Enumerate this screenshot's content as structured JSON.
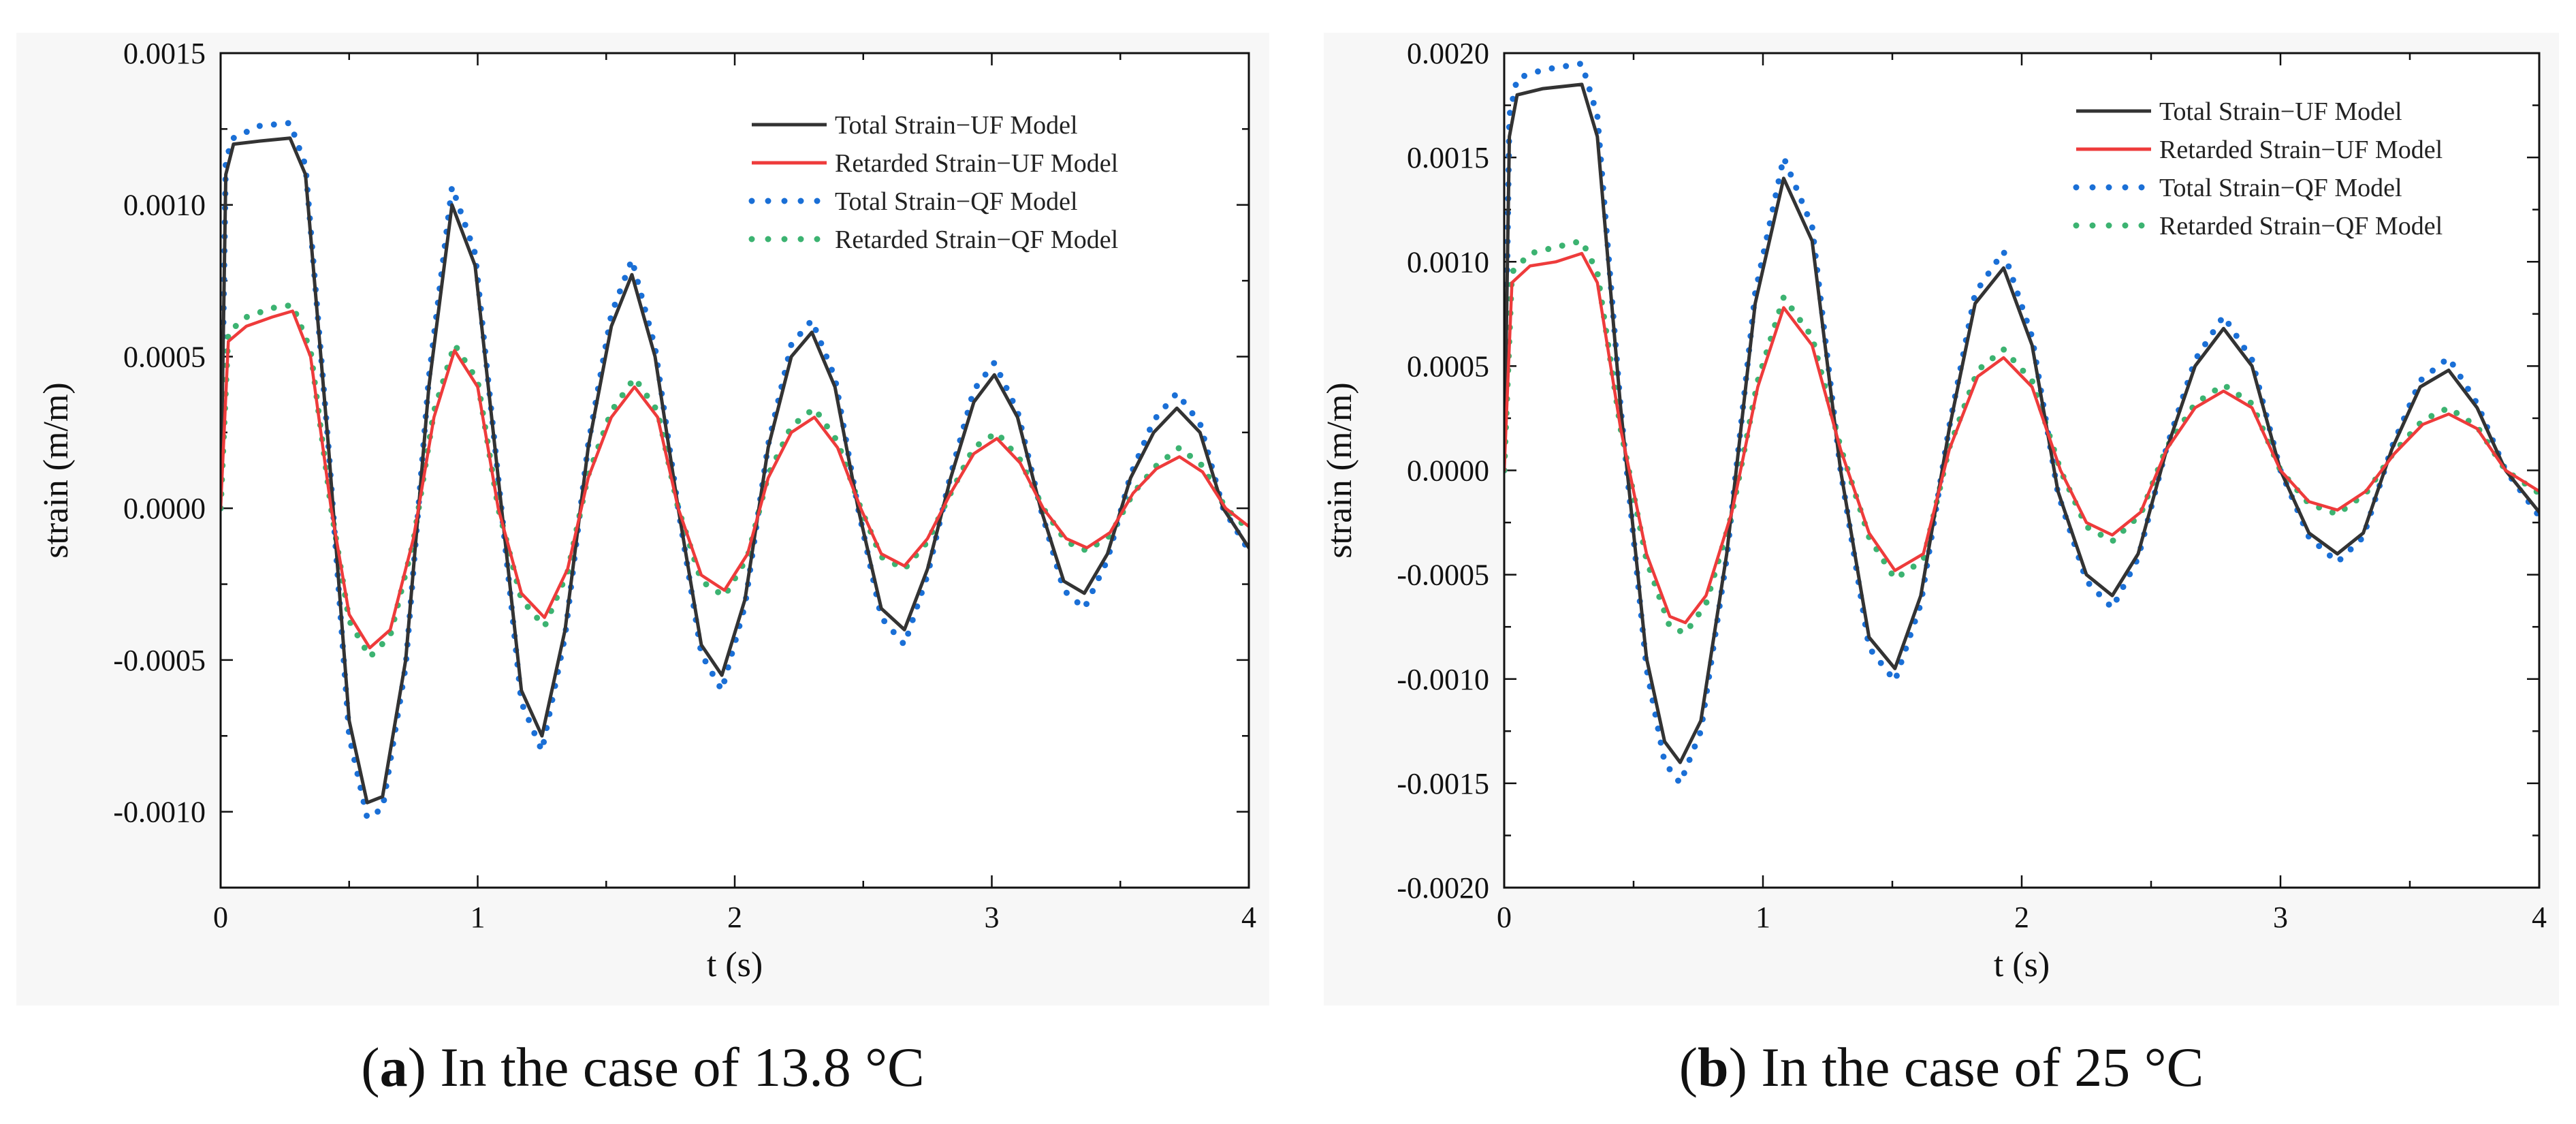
{
  "chart_data": [
    {
      "type": "line",
      "panel_id": "a",
      "caption_letter": "a",
      "caption_text": ") In the case of 13.8 °C",
      "xlabel": "t (s)",
      "ylabel": "strain (m/m)",
      "xlim": [
        0,
        4
      ],
      "ylim": [
        -0.00125,
        0.0015
      ],
      "xticks": [
        0,
        1,
        2,
        3,
        4
      ],
      "xtick_labels": [
        "0",
        "1",
        "2",
        "3",
        "4"
      ],
      "yticks": [
        -0.001,
        -0.0005,
        0.0,
        0.0005,
        0.001,
        0.0015
      ],
      "ytick_labels": [
        "-0.0010",
        "-0.0005",
        "0.0000",
        "0.0005",
        "0.0010",
        "0.0015"
      ],
      "legend_position": "top-right",
      "series": [
        {
          "name": "Total Strain−UF Model",
          "color": "#333333",
          "style": "solid",
          "x": [
            0,
            0.02,
            0.05,
            0.15,
            0.27,
            0.33,
            0.42,
            0.5,
            0.57,
            0.63,
            0.72,
            0.81,
            0.9,
            0.99,
            1.08,
            1.17,
            1.25,
            1.34,
            1.43,
            1.52,
            1.6,
            1.69,
            1.78,
            1.87,
            1.95,
            2.04,
            2.13,
            2.22,
            2.3,
            2.39,
            2.48,
            2.57,
            2.66,
            2.75,
            2.84,
            2.93,
            3.01,
            3.1,
            3.19,
            3.28,
            3.36,
            3.45,
            3.54,
            3.63,
            3.72,
            3.81,
            3.9,
            4.0
          ],
          "y": [
            0.0,
            0.0011,
            0.0012,
            0.00121,
            0.00122,
            0.0011,
            0.0002,
            -0.0007,
            -0.00097,
            -0.00095,
            -0.0005,
            0.0004,
            0.001,
            0.0008,
            0.0001,
            -0.0006,
            -0.00075,
            -0.0004,
            0.0002,
            0.0006,
            0.00077,
            0.0005,
            0.0,
            -0.00045,
            -0.00055,
            -0.0003,
            0.0002,
            0.0005,
            0.00058,
            0.0004,
            0.0,
            -0.00033,
            -0.0004,
            -0.0002,
            0.0001,
            0.00035,
            0.00044,
            0.0003,
            0.0,
            -0.00024,
            -0.00028,
            -0.00015,
            0.0001,
            0.00025,
            0.00033,
            0.00025,
            0.0,
            -0.00013
          ]
        },
        {
          "name": "Retarded Strain−UF Model",
          "color": "#ee3b3b",
          "style": "solid",
          "x": [
            0,
            0.03,
            0.1,
            0.2,
            0.28,
            0.35,
            0.43,
            0.5,
            0.58,
            0.66,
            0.75,
            0.83,
            0.91,
            1.0,
            1.08,
            1.17,
            1.26,
            1.35,
            1.43,
            1.52,
            1.61,
            1.7,
            1.78,
            1.87,
            1.96,
            2.05,
            2.13,
            2.22,
            2.31,
            2.4,
            2.49,
            2.57,
            2.66,
            2.75,
            2.84,
            2.93,
            3.02,
            3.11,
            3.2,
            3.29,
            3.37,
            3.46,
            3.55,
            3.64,
            3.73,
            3.82,
            3.91,
            4.0
          ],
          "y": [
            0.0,
            0.00055,
            0.0006,
            0.00063,
            0.00065,
            0.0005,
            0.0,
            -0.00035,
            -0.00046,
            -0.0004,
            -0.0001,
            0.0003,
            0.00052,
            0.0004,
            0.0,
            -0.00028,
            -0.00036,
            -0.0002,
            0.0001,
            0.0003,
            0.0004,
            0.0003,
            0.0,
            -0.00022,
            -0.00027,
            -0.00015,
            0.0001,
            0.00025,
            0.0003,
            0.0002,
            0.0,
            -0.00015,
            -0.00019,
            -0.0001,
            5e-05,
            0.00018,
            0.00023,
            0.00015,
            0.0,
            -0.0001,
            -0.00013,
            -8e-05,
            5e-05,
            0.00013,
            0.00017,
            0.00012,
            0.0,
            -6e-05
          ]
        },
        {
          "name": "Total Strain−QF Model",
          "color": "#1a6fd6",
          "style": "dotted",
          "x": [
            0,
            0.02,
            0.05,
            0.15,
            0.27,
            0.33,
            0.42,
            0.5,
            0.57,
            0.63,
            0.72,
            0.81,
            0.9,
            0.99,
            1.08,
            1.17,
            1.25,
            1.34,
            1.43,
            1.52,
            1.6,
            1.69,
            1.78,
            1.87,
            1.95,
            2.04,
            2.13,
            2.22,
            2.3,
            2.39,
            2.48,
            2.57,
            2.66,
            2.75,
            2.84,
            2.93,
            3.01,
            3.1,
            3.19,
            3.28,
            3.36,
            3.45,
            3.54,
            3.63,
            3.72,
            3.81,
            3.9,
            4.0
          ],
          "y": [
            0.0,
            0.00115,
            0.00122,
            0.00126,
            0.00127,
            0.00113,
            0.0002,
            -0.00075,
            -0.00102,
            -0.00099,
            -0.00052,
            0.00043,
            0.00106,
            0.00084,
            0.0001,
            -0.00064,
            -0.0008,
            -0.00042,
            0.00021,
            0.00064,
            0.00082,
            0.00053,
            0.0,
            -0.00048,
            -0.0006,
            -0.00032,
            0.00021,
            0.00054,
            0.00062,
            0.00043,
            0.0,
            -0.00036,
            -0.00045,
            -0.00022,
            0.00011,
            0.00039,
            0.00048,
            0.00032,
            0.0,
            -0.00027,
            -0.00033,
            -0.00017,
            0.00011,
            0.00029,
            0.00038,
            0.00028,
            0.0,
            -0.00014
          ]
        },
        {
          "name": "Retarded Strain−QF Model",
          "color": "#3cb371",
          "style": "dotted",
          "x": [
            0,
            0.03,
            0.1,
            0.2,
            0.28,
            0.35,
            0.43,
            0.5,
            0.58,
            0.66,
            0.75,
            0.83,
            0.91,
            1.0,
            1.08,
            1.17,
            1.26,
            1.35,
            1.43,
            1.52,
            1.61,
            1.7,
            1.78,
            1.87,
            1.96,
            2.05,
            2.13,
            2.22,
            2.31,
            2.4,
            2.49,
            2.57,
            2.66,
            2.75,
            2.84,
            2.93,
            3.02,
            3.11,
            3.2,
            3.29,
            3.37,
            3.46,
            3.55,
            3.64,
            3.73,
            3.82,
            3.91,
            4.0
          ],
          "y": [
            0.0,
            0.00058,
            0.00063,
            0.00066,
            0.00067,
            0.00052,
            0.0,
            -0.00037,
            -0.00049,
            -0.00042,
            -0.00011,
            0.00032,
            0.00054,
            0.00042,
            0.0,
            -0.0003,
            -0.00039,
            -0.00021,
            0.00011,
            0.00032,
            0.00043,
            0.00032,
            0.0,
            -0.00024,
            -0.00029,
            -0.00016,
            0.00011,
            0.00027,
            0.00033,
            0.00022,
            0.0,
            -0.00016,
            -0.0002,
            -0.00011,
            5e-05,
            0.0002,
            0.00025,
            0.00016,
            0.0,
            -0.00011,
            -0.00014,
            -9e-05,
            5e-05,
            0.00014,
            0.0002,
            0.00014,
            0.0,
            -7e-05
          ]
        }
      ]
    },
    {
      "type": "line",
      "panel_id": "b",
      "caption_letter": "b",
      "caption_text": ") In the case of 25 °C",
      "xlabel": "t (s)",
      "ylabel": "strain (m/m)",
      "xlim": [
        0,
        4
      ],
      "ylim": [
        -0.002,
        0.002
      ],
      "xticks": [
        0,
        1,
        2,
        3,
        4
      ],
      "xtick_labels": [
        "0",
        "1",
        "2",
        "3",
        "4"
      ],
      "yticks": [
        -0.002,
        -0.0015,
        -0.001,
        -0.0005,
        0.0,
        0.0005,
        0.001,
        0.0015,
        0.002
      ],
      "ytick_labels": [
        "-0.0020",
        "-0.0015",
        "-0.0010",
        "-0.0005",
        "0.0000",
        "0.0005",
        "0.0010",
        "0.0015",
        "0.0020"
      ],
      "legend_position": "top-right",
      "series": [
        {
          "name": "Total Strain−UF Model",
          "color": "#333333",
          "style": "solid",
          "x": [
            0,
            0.02,
            0.05,
            0.15,
            0.3,
            0.36,
            0.45,
            0.55,
            0.62,
            0.68,
            0.76,
            0.86,
            0.97,
            1.08,
            1.19,
            1.3,
            1.41,
            1.51,
            1.61,
            1.72,
            1.82,
            1.93,
            2.04,
            2.14,
            2.25,
            2.35,
            2.45,
            2.56,
            2.67,
            2.78,
            2.89,
            3.0,
            3.11,
            3.22,
            3.32,
            3.43,
            3.54,
            3.65,
            3.76,
            3.87,
            4.0
          ],
          "y": [
            0.0,
            0.0016,
            0.0018,
            0.00183,
            0.00185,
            0.0016,
            0.0003,
            -0.0009,
            -0.0013,
            -0.0014,
            -0.0012,
            -0.0004,
            0.0008,
            0.0014,
            0.0011,
            0.0,
            -0.0008,
            -0.00095,
            -0.0006,
            0.0002,
            0.0008,
            0.00097,
            0.0006,
            -0.0001,
            -0.0005,
            -0.0006,
            -0.0004,
            0.0001,
            0.0005,
            0.00068,
            0.0005,
            0.0,
            -0.0003,
            -0.0004,
            -0.0003,
            0.0001,
            0.0004,
            0.00048,
            0.0003,
            0.0,
            -0.0002
          ]
        },
        {
          "name": "Retarded Strain−UF Model",
          "color": "#ee3b3b",
          "style": "solid",
          "x": [
            0,
            0.03,
            0.1,
            0.2,
            0.3,
            0.36,
            0.45,
            0.55,
            0.64,
            0.7,
            0.78,
            0.88,
            0.98,
            1.08,
            1.19,
            1.3,
            1.41,
            1.51,
            1.62,
            1.72,
            1.83,
            1.93,
            2.04,
            2.15,
            2.25,
            2.35,
            2.46,
            2.56,
            2.67,
            2.78,
            2.89,
            3.0,
            3.11,
            3.22,
            3.33,
            3.44,
            3.55,
            3.65,
            3.76,
            3.87,
            4.0
          ],
          "y": [
            0.0,
            0.0009,
            0.00098,
            0.001,
            0.00104,
            0.0009,
            0.0002,
            -0.0004,
            -0.0007,
            -0.00073,
            -0.0006,
            -0.0002,
            0.0004,
            0.00078,
            0.0006,
            0.0001,
            -0.0003,
            -0.00048,
            -0.0004,
            0.0001,
            0.00045,
            0.00054,
            0.0004,
            0.0,
            -0.00025,
            -0.00031,
            -0.0002,
            0.0001,
            0.0003,
            0.00038,
            0.0003,
            0.0,
            -0.00015,
            -0.00019,
            -0.0001,
            8e-05,
            0.00022,
            0.00027,
            0.0002,
            0.0,
            -0.0001
          ]
        },
        {
          "name": "Total Strain−QF Model",
          "color": "#1a6fd6",
          "style": "dotted",
          "x": [
            0,
            0.02,
            0.05,
            0.15,
            0.3,
            0.36,
            0.45,
            0.55,
            0.62,
            0.68,
            0.76,
            0.86,
            0.97,
            1.08,
            1.19,
            1.3,
            1.41,
            1.51,
            1.61,
            1.72,
            1.82,
            1.93,
            2.04,
            2.14,
            2.25,
            2.35,
            2.45,
            2.56,
            2.67,
            2.78,
            2.89,
            3.0,
            3.11,
            3.22,
            3.32,
            3.43,
            3.54,
            3.65,
            3.76,
            3.87,
            4.0
          ],
          "y": [
            0.0,
            0.0017,
            0.00188,
            0.00192,
            0.00195,
            0.0017,
            0.0003,
            -0.00095,
            -0.0014,
            -0.0015,
            -0.00125,
            -0.00042,
            0.00085,
            0.0015,
            0.00117,
            0.0,
            -0.00085,
            -0.00101,
            -0.00064,
            0.00021,
            0.00085,
            0.00105,
            0.00064,
            -0.00011,
            -0.00053,
            -0.00066,
            -0.00042,
            0.00011,
            0.00053,
            0.00074,
            0.00053,
            0.0,
            -0.00032,
            -0.00044,
            -0.00032,
            0.00011,
            0.00043,
            0.00054,
            0.00032,
            0.0,
            -0.00022
          ]
        },
        {
          "name": "Retarded Strain−QF Model",
          "color": "#3cb371",
          "style": "dotted",
          "x": [
            0,
            0.03,
            0.1,
            0.2,
            0.3,
            0.36,
            0.45,
            0.55,
            0.64,
            0.7,
            0.78,
            0.88,
            0.98,
            1.08,
            1.19,
            1.3,
            1.41,
            1.51,
            1.62,
            1.72,
            1.83,
            1.93,
            2.04,
            2.15,
            2.25,
            2.35,
            2.46,
            2.56,
            2.67,
            2.78,
            2.89,
            3.0,
            3.11,
            3.22,
            3.33,
            3.44,
            3.55,
            3.65,
            3.76,
            3.87,
            4.0
          ],
          "y": [
            0.0,
            0.00095,
            0.00104,
            0.00107,
            0.0011,
            0.00095,
            0.0002,
            -0.00043,
            -0.00075,
            -0.00078,
            -0.00064,
            -0.00021,
            0.00043,
            0.00083,
            0.00064,
            0.00011,
            -0.00032,
            -0.00052,
            -0.00043,
            0.00011,
            0.00048,
            0.00058,
            0.00043,
            0.0,
            -0.00027,
            -0.00034,
            -0.00021,
            0.00011,
            0.00032,
            0.00041,
            0.00032,
            0.0,
            -0.00016,
            -0.00021,
            -0.00011,
            9e-05,
            0.00024,
            0.0003,
            0.00021,
            0.0,
            -0.00011
          ]
        }
      ]
    }
  ]
}
